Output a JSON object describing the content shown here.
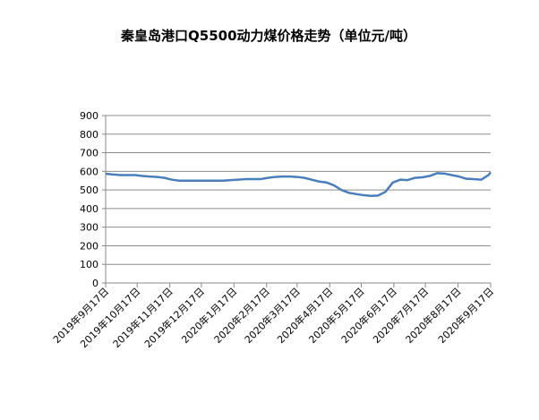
{
  "chart_data": {
    "type": "line",
    "title": "秦皇岛港口Q5500动力煤价格走势（单位元/吨）",
    "x": [
      "2019-09-17",
      "2019-09-24",
      "2019-10-01",
      "2019-10-08",
      "2019-10-15",
      "2019-10-22",
      "2019-10-29",
      "2019-11-05",
      "2019-11-12",
      "2019-11-19",
      "2019-11-26",
      "2019-12-03",
      "2019-12-10",
      "2019-12-17",
      "2019-12-24",
      "2019-12-31",
      "2020-01-07",
      "2020-01-14",
      "2020-01-21",
      "2020-01-28",
      "2020-02-04",
      "2020-02-11",
      "2020-02-18",
      "2020-02-25",
      "2020-03-03",
      "2020-03-10",
      "2020-03-17",
      "2020-03-24",
      "2020-03-31",
      "2020-04-07",
      "2020-04-14",
      "2020-04-21",
      "2020-04-28",
      "2020-05-05",
      "2020-05-12",
      "2020-05-19",
      "2020-05-26",
      "2020-06-02",
      "2020-06-09",
      "2020-06-16",
      "2020-06-23",
      "2020-06-30",
      "2020-07-07",
      "2020-07-14",
      "2020-07-21",
      "2020-07-28",
      "2020-08-04",
      "2020-08-11",
      "2020-08-18",
      "2020-08-25",
      "2020-09-01",
      "2020-09-08",
      "2020-09-15",
      "2020-09-17"
    ],
    "series": [
      {
        "name": "Q5500",
        "color": "#4a7ebb",
        "values": [
          587,
          583,
          580,
          580,
          580,
          575,
          572,
          570,
          565,
          555,
          550,
          550,
          550,
          550,
          550,
          550,
          550,
          553,
          555,
          558,
          558,
          558,
          565,
          570,
          572,
          572,
          570,
          565,
          555,
          545,
          540,
          525,
          500,
          485,
          478,
          472,
          468,
          470,
          490,
          540,
          555,
          553,
          565,
          568,
          575,
          590,
          588,
          580,
          572,
          560,
          558,
          555,
          580,
          595
        ]
      }
    ],
    "xlim": [
      "2019-09-17",
      "2020-09-17"
    ],
    "xticks": [
      {
        "value": "2019-09-17",
        "label": "2019年9月17日"
      },
      {
        "value": "2019-10-17",
        "label": "2019年10月17日"
      },
      {
        "value": "2019-11-17",
        "label": "2019年11月17日"
      },
      {
        "value": "2019-12-17",
        "label": "2019年12月17日"
      },
      {
        "value": "2020-01-17",
        "label": "2020年1月17日"
      },
      {
        "value": "2020-02-17",
        "label": "2020年2月17日"
      },
      {
        "value": "2020-03-17",
        "label": "2020年3月17日"
      },
      {
        "value": "2020-04-17",
        "label": "2020年4月17日"
      },
      {
        "value": "2020-05-17",
        "label": "2020年5月17日"
      },
      {
        "value": "2020-06-17",
        "label": "2020年6月17日"
      },
      {
        "value": "2020-07-17",
        "label": "2020年7月17日"
      },
      {
        "value": "2020-08-17",
        "label": "2020年8月17日"
      },
      {
        "value": "2020-09-17",
        "label": "2020年9月17日"
      }
    ],
    "ylim": [
      0,
      900
    ],
    "yticks": [
      0,
      100,
      200,
      300,
      400,
      500,
      600,
      700,
      800,
      900
    ],
    "grid": true
  }
}
